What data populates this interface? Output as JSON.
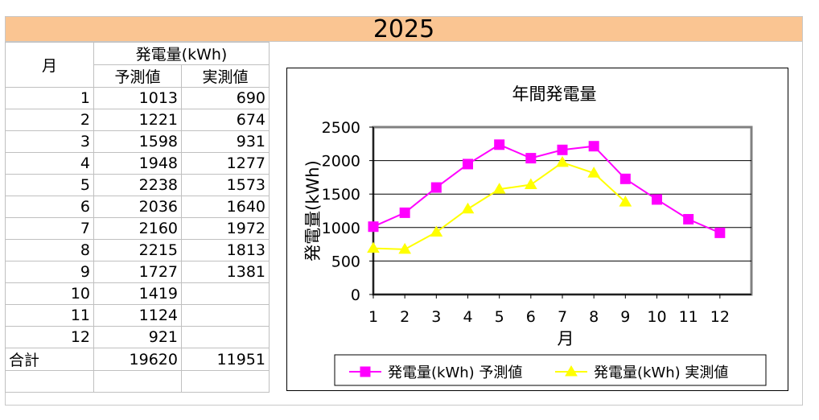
{
  "year_title": "2025",
  "table": {
    "month_header": "月",
    "group_header": "発電量(kWh)",
    "col_predicted": "予測値",
    "col_actual": "実測値",
    "rows": [
      {
        "month": "1",
        "predicted": "1013",
        "actual": "690"
      },
      {
        "month": "2",
        "predicted": "1221",
        "actual": "674"
      },
      {
        "month": "3",
        "predicted": "1598",
        "actual": "931"
      },
      {
        "month": "4",
        "predicted": "1948",
        "actual": "1277"
      },
      {
        "month": "5",
        "predicted": "2238",
        "actual": "1573"
      },
      {
        "month": "6",
        "predicted": "2036",
        "actual": "1640"
      },
      {
        "month": "7",
        "predicted": "2160",
        "actual": "1972"
      },
      {
        "month": "8",
        "predicted": "2215",
        "actual": "1813"
      },
      {
        "month": "9",
        "predicted": "1727",
        "actual": "1381"
      },
      {
        "month": "10",
        "predicted": "1419",
        "actual": ""
      },
      {
        "month": "11",
        "predicted": "1124",
        "actual": ""
      },
      {
        "month": "12",
        "predicted": "921",
        "actual": ""
      }
    ],
    "total_label": "合計",
    "total_predicted": "19620",
    "total_actual": "11951"
  },
  "chart_data": {
    "type": "line",
    "title": "年間発電量",
    "xlabel": "月",
    "ylabel": "発電量(kWh)",
    "categories": [
      "1",
      "2",
      "3",
      "4",
      "5",
      "6",
      "7",
      "8",
      "9",
      "10",
      "11",
      "12"
    ],
    "ylim": [
      0,
      2500
    ],
    "yticks": [
      0,
      500,
      1000,
      1500,
      2000,
      2500
    ],
    "grid": true,
    "legend_position": "bottom",
    "series": [
      {
        "name": "発電量(kWh) 予測値",
        "color": "#ff00ff",
        "marker": "square",
        "values": [
          1013,
          1221,
          1598,
          1948,
          2238,
          2036,
          2160,
          2215,
          1727,
          1419,
          1124,
          921
        ]
      },
      {
        "name": "発電量(kWh) 実測値",
        "color": "#ffff00",
        "marker": "triangle",
        "values": [
          690,
          674,
          931,
          1277,
          1573,
          1640,
          1972,
          1813,
          1381,
          null,
          null,
          null
        ]
      }
    ]
  }
}
